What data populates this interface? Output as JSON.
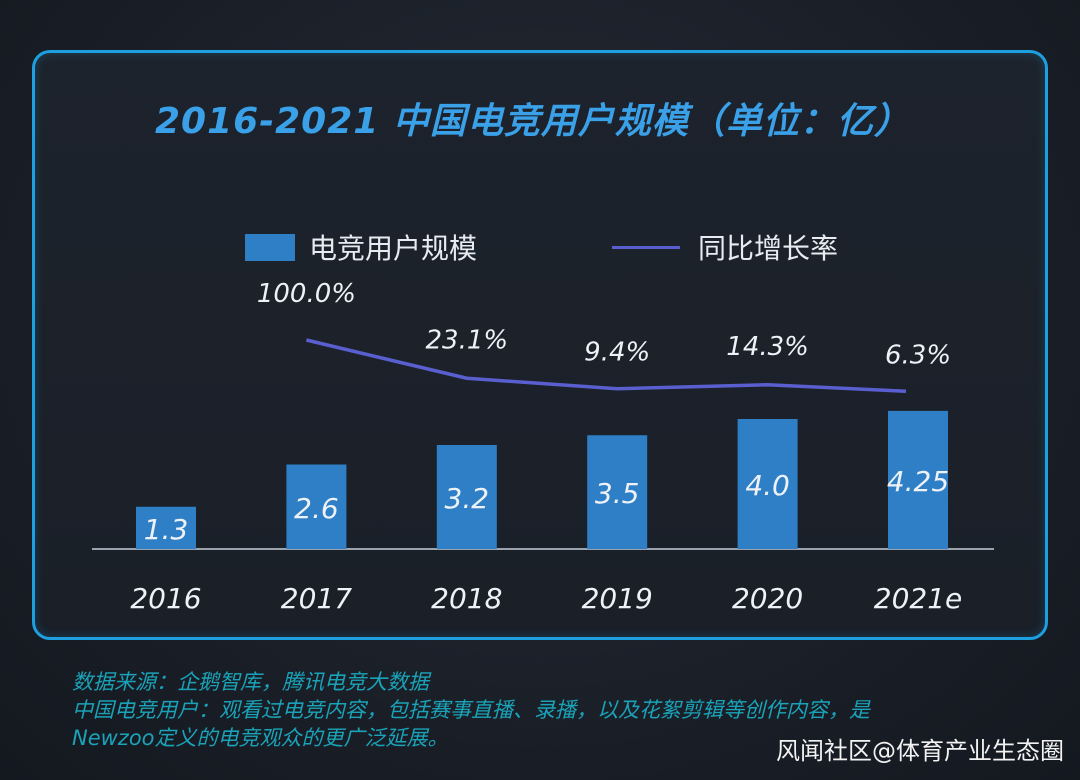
{
  "chart_data": {
    "type": "bar",
    "title": "2016-2021 中国电竞用户规模（单位：亿）",
    "categories": [
      "2016",
      "2017",
      "2018",
      "2019",
      "2020",
      "2021e"
    ],
    "series": [
      {
        "name": "电竞用户规模",
        "type": "bar",
        "values": [
          1.3,
          2.6,
          3.2,
          3.5,
          4.0,
          4.25
        ],
        "labels": [
          "1.3",
          "2.6",
          "3.2",
          "3.5",
          "4.0",
          "4.25"
        ],
        "color": "#2f7fc6"
      },
      {
        "name": "同比增长率",
        "type": "line",
        "x": [
          "2017",
          "2018",
          "2019",
          "2020",
          "2021e"
        ],
        "values": [
          100.0,
          23.1,
          9.4,
          14.3,
          6.3
        ],
        "labels": [
          "100.0%",
          "23.1%",
          "9.4%",
          "14.3%",
          "6.3%"
        ],
        "color": "#5a5fd0"
      }
    ],
    "grid": false,
    "legend_position": "top"
  },
  "colors": {
    "accent": "#1d9fe0",
    "title": "#3aa0e8",
    "bar": "#2f7fc6",
    "line": "#5a5fd0",
    "footnote": "#1aa3b8"
  },
  "footnotes": {
    "source": "数据来源：企鹅智库，腾讯电竞大数据",
    "definition_line1": "中国电竞用户：观看过电竞内容，包括赛事直播、录播，以及花絮剪辑等创作内容，是",
    "definition_line2": "Newzoo定义的电竞观众的更广泛延展。"
  },
  "watermark": "风闻社区@体育产业生态圈"
}
